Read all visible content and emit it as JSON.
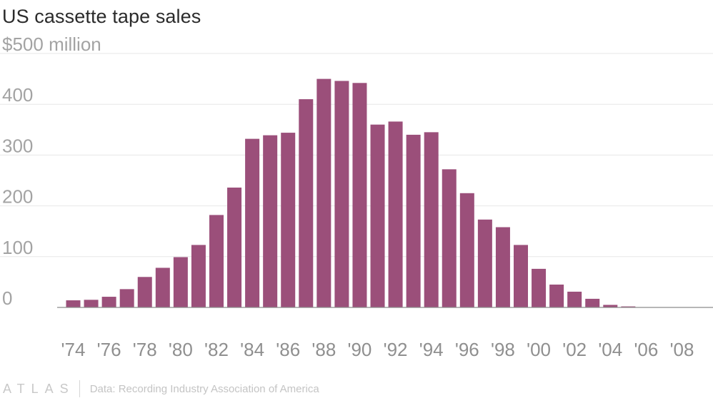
{
  "chart_data": {
    "type": "bar",
    "title": "US cassette tape sales",
    "ylabel": "",
    "xlabel": "",
    "ylim": [
      0,
      500
    ],
    "yticks": [
      0,
      100,
      200,
      300,
      400,
      500
    ],
    "ytick_labels": [
      "0",
      "100",
      "200",
      "300",
      "400",
      "$500 million"
    ],
    "grid": true,
    "bar_color": "#9b4f7a",
    "categories": [
      "'74",
      "'75",
      "'76",
      "'77",
      "'78",
      "'79",
      "'80",
      "'81",
      "'82",
      "'83",
      "'84",
      "'85",
      "'86",
      "'87",
      "'88",
      "'89",
      "'90",
      "'91",
      "'92",
      "'93",
      "'94",
      "'95",
      "'96",
      "'97",
      "'98",
      "'99",
      "'00",
      "'01",
      "'02",
      "'03",
      "'04",
      "'05",
      "'06",
      "'07",
      "'08"
    ],
    "xtick_labels": [
      "'74",
      "'76",
      "'78",
      "'80",
      "'82",
      "'84",
      "'86",
      "'88",
      "'90",
      "'92",
      "'94",
      "'96",
      "'98",
      "'00",
      "'02",
      "'04",
      "'06",
      "'08"
    ],
    "values": [
      14,
      15,
      21,
      36,
      60,
      78,
      99,
      123,
      182,
      236,
      332,
      339,
      344,
      410,
      450,
      446,
      442,
      360,
      366,
      340,
      345,
      272,
      225,
      173,
      158,
      123,
      76,
      45,
      31,
      17,
      5,
      2,
      0.7,
      0.3,
      0.1
    ]
  },
  "footer": {
    "brand": "ATLAS",
    "source": "Data: Recording Industry Association of America"
  }
}
